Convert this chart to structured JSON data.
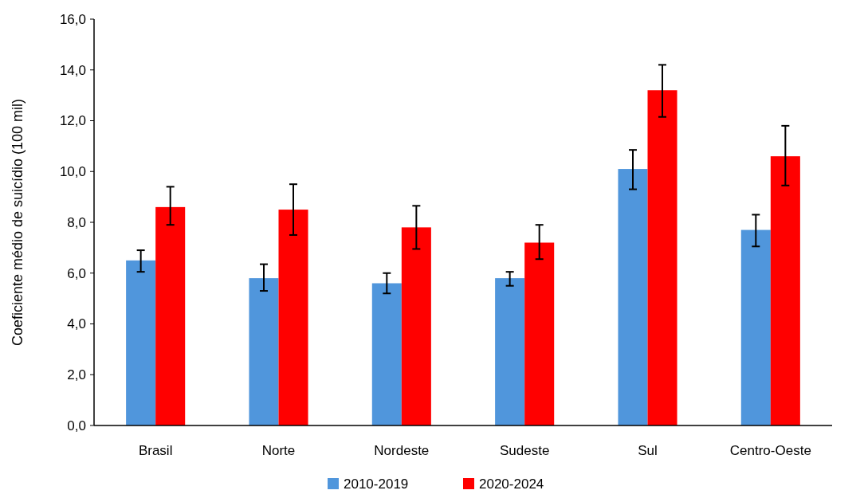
{
  "chart_data": {
    "type": "bar",
    "ylabel": "Coeficiente médio de suicídio (100 mil)",
    "categories": [
      "Brasil",
      "Norte",
      "Nordeste",
      "Sudeste",
      "Sul",
      "Centro-Oeste"
    ],
    "series": [
      {
        "name": "2010-2019",
        "color": "#5096dc",
        "values": [
          6.5,
          5.8,
          5.6,
          5.8,
          10.1,
          7.7
        ],
        "errors": [
          [
            6.05,
            6.9
          ],
          [
            5.3,
            6.35
          ],
          [
            5.2,
            6.0
          ],
          [
            5.5,
            6.05
          ],
          [
            9.3,
            10.85
          ],
          [
            7.05,
            8.3
          ]
        ]
      },
      {
        "name": "2020-2024",
        "color": "#ff0000",
        "values": [
          8.6,
          8.5,
          7.8,
          7.2,
          13.2,
          10.6
        ],
        "errors": [
          [
            7.9,
            9.4
          ],
          [
            7.5,
            9.5
          ],
          [
            6.95,
            8.65
          ],
          [
            6.55,
            7.9
          ],
          [
            12.15,
            14.2
          ],
          [
            9.45,
            11.8
          ]
        ]
      }
    ],
    "ylim": [
      0,
      16
    ],
    "yticks": [
      {
        "value": 0,
        "label": "0,0"
      },
      {
        "value": 2,
        "label": "2,0"
      },
      {
        "value": 4,
        "label": "4,0"
      },
      {
        "value": 6,
        "label": "6,0"
      },
      {
        "value": 8,
        "label": "8,0"
      },
      {
        "value": 10,
        "label": "10,0"
      },
      {
        "value": 12,
        "label": "12,0"
      },
      {
        "value": 14,
        "label": "14,0"
      },
      {
        "value": 16,
        "label": "16,0"
      }
    ],
    "grid": false,
    "legend": "bottom"
  }
}
